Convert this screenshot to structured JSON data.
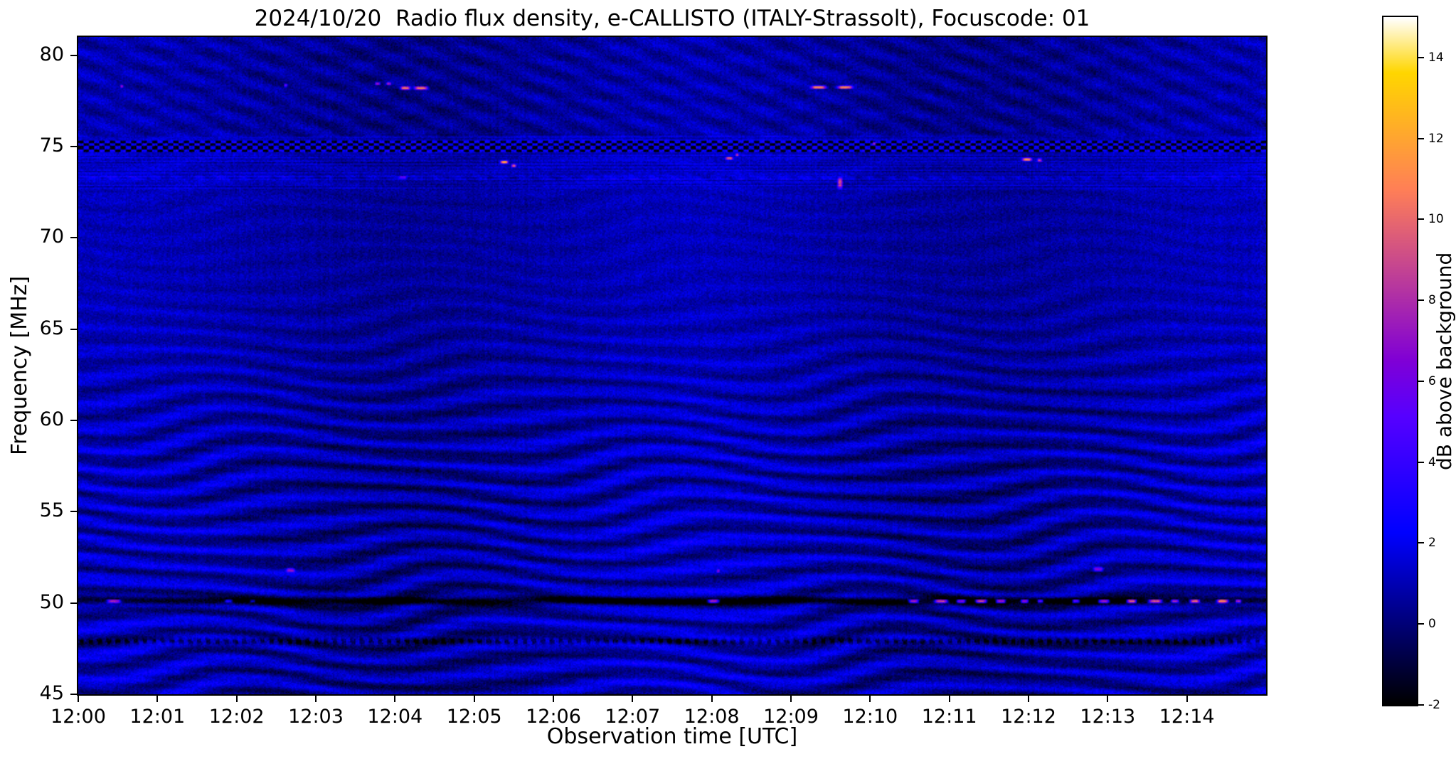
{
  "chart_data": {
    "type": "heatmap",
    "title": "2024/10/20  Radio flux density, e-CALLISTO (ITALY-Strassolt), Focuscode: 01",
    "xlabel": "Observation time [UTC]",
    "ylabel": "Frequency [MHz]",
    "x_range_minutes": [
      0,
      15
    ],
    "x_start": "12:00",
    "x_ticks": [
      {
        "label": "12:00",
        "minute": 0
      },
      {
        "label": "12:01",
        "minute": 1
      },
      {
        "label": "12:02",
        "minute": 2
      },
      {
        "label": "12:03",
        "minute": 3
      },
      {
        "label": "12:04",
        "minute": 4
      },
      {
        "label": "12:05",
        "minute": 5
      },
      {
        "label": "12:06",
        "minute": 6
      },
      {
        "label": "12:07",
        "minute": 7
      },
      {
        "label": "12:08",
        "minute": 8
      },
      {
        "label": "12:09",
        "minute": 9
      },
      {
        "label": "12:10",
        "minute": 10
      },
      {
        "label": "12:11",
        "minute": 11
      },
      {
        "label": "12:12",
        "minute": 12
      },
      {
        "label": "12:13",
        "minute": 13
      },
      {
        "label": "12:14",
        "minute": 14
      }
    ],
    "y_range_mhz": [
      45,
      81
    ],
    "y_ticks": [
      80,
      75,
      70,
      65,
      60,
      55,
      50,
      45
    ],
    "colorbar": {
      "label": "dB above background",
      "vmin": -2,
      "vmax": 15,
      "ticks": [
        14,
        12,
        10,
        8,
        6,
        4,
        2,
        0,
        -2
      ],
      "colormap": "gnuplot2"
    },
    "background_model": {
      "base_db": 0.8,
      "noise_db": 0.7,
      "ripple_db": 1.15,
      "ripple_period_mhz": 1.15,
      "ripple_fade_start_mhz": 58,
      "ripple_fade_end_mhz": 68,
      "diagonal_band_start_mhz": 75.5
    },
    "interference_lines": [
      {
        "f_mhz": 50.12,
        "type": "absorption",
        "depth_db": 3.4,
        "width_mhz": 0.3
      },
      {
        "f_mhz": 47.9,
        "type": "absorption-dashed",
        "depth_db": 2.4,
        "width_mhz": 0.25
      },
      {
        "f_mhz": 73.28,
        "type": "faint-emission",
        "peak_db": 1.0,
        "width_mhz": 0.2
      },
      {
        "f_mhz": 75.0,
        "type": "checkerboard",
        "width_mhz": 0.6,
        "bright_db": 2.4,
        "dark_db": -1.7
      }
    ],
    "bursts": [
      {
        "t_min": 0.45,
        "f_mhz": 50.1,
        "dur_min": 0.14,
        "bw_mhz": 0.16,
        "db": 9
      },
      {
        "t_min": 1.9,
        "f_mhz": 50.1,
        "dur_min": 0.08,
        "bw_mhz": 0.14,
        "db": 5
      },
      {
        "t_min": 2.2,
        "f_mhz": 50.1,
        "dur_min": 0.06,
        "bw_mhz": 0.14,
        "db": 4
      },
      {
        "t_min": 8.02,
        "f_mhz": 50.1,
        "dur_min": 0.12,
        "bw_mhz": 0.16,
        "db": 10
      },
      {
        "t_min": 10.55,
        "f_mhz": 50.1,
        "dur_min": 0.1,
        "bw_mhz": 0.16,
        "db": 9
      },
      {
        "t_min": 10.9,
        "f_mhz": 50.1,
        "dur_min": 0.14,
        "bw_mhz": 0.16,
        "db": 11
      },
      {
        "t_min": 11.15,
        "f_mhz": 50.1,
        "dur_min": 0.1,
        "bw_mhz": 0.16,
        "db": 10
      },
      {
        "t_min": 11.4,
        "f_mhz": 50.1,
        "dur_min": 0.12,
        "bw_mhz": 0.16,
        "db": 12
      },
      {
        "t_min": 11.65,
        "f_mhz": 50.1,
        "dur_min": 0.1,
        "bw_mhz": 0.16,
        "db": 10
      },
      {
        "t_min": 11.95,
        "f_mhz": 50.1,
        "dur_min": 0.08,
        "bw_mhz": 0.16,
        "db": 9
      },
      {
        "t_min": 12.15,
        "f_mhz": 50.1,
        "dur_min": 0.06,
        "bw_mhz": 0.14,
        "db": 8
      },
      {
        "t_min": 12.6,
        "f_mhz": 50.1,
        "dur_min": 0.08,
        "bw_mhz": 0.16,
        "db": 9
      },
      {
        "t_min": 12.95,
        "f_mhz": 50.1,
        "dur_min": 0.12,
        "bw_mhz": 0.16,
        "db": 11
      },
      {
        "t_min": 13.3,
        "f_mhz": 50.1,
        "dur_min": 0.1,
        "bw_mhz": 0.16,
        "db": 12
      },
      {
        "t_min": 13.6,
        "f_mhz": 50.1,
        "dur_min": 0.14,
        "bw_mhz": 0.16,
        "db": 11
      },
      {
        "t_min": 13.85,
        "f_mhz": 50.1,
        "dur_min": 0.08,
        "bw_mhz": 0.14,
        "db": 9
      },
      {
        "t_min": 14.1,
        "f_mhz": 50.1,
        "dur_min": 0.1,
        "bw_mhz": 0.16,
        "db": 11
      },
      {
        "t_min": 14.45,
        "f_mhz": 50.1,
        "dur_min": 0.12,
        "bw_mhz": 0.16,
        "db": 12
      },
      {
        "t_min": 14.65,
        "f_mhz": 50.1,
        "dur_min": 0.06,
        "bw_mhz": 0.14,
        "db": 9
      },
      {
        "t_min": 0.55,
        "f_mhz": 78.3,
        "dur_min": 0.03,
        "bw_mhz": 0.12,
        "db": 6
      },
      {
        "t_min": 2.62,
        "f_mhz": 78.35,
        "dur_min": 0.025,
        "bw_mhz": 0.12,
        "db": 6
      },
      {
        "t_min": 3.78,
        "f_mhz": 78.45,
        "dur_min": 0.05,
        "bw_mhz": 0.12,
        "db": 7
      },
      {
        "t_min": 3.92,
        "f_mhz": 78.45,
        "dur_min": 0.05,
        "bw_mhz": 0.12,
        "db": 7
      },
      {
        "t_min": 4.13,
        "f_mhz": 78.2,
        "dur_min": 0.1,
        "bw_mhz": 0.12,
        "db": 11
      },
      {
        "t_min": 4.33,
        "f_mhz": 78.2,
        "dur_min": 0.14,
        "bw_mhz": 0.12,
        "db": 11
      },
      {
        "t_min": 9.35,
        "f_mhz": 78.25,
        "dur_min": 0.16,
        "bw_mhz": 0.12,
        "db": 11
      },
      {
        "t_min": 9.68,
        "f_mhz": 78.25,
        "dur_min": 0.16,
        "bw_mhz": 0.12,
        "db": 11
      },
      {
        "t_min": 5.38,
        "f_mhz": 74.15,
        "dur_min": 0.08,
        "bw_mhz": 0.14,
        "db": 11
      },
      {
        "t_min": 5.5,
        "f_mhz": 73.95,
        "dur_min": 0.05,
        "bw_mhz": 0.12,
        "db": 8
      },
      {
        "t_min": 8.22,
        "f_mhz": 74.35,
        "dur_min": 0.08,
        "bw_mhz": 0.12,
        "db": 8
      },
      {
        "t_min": 8.32,
        "f_mhz": 74.55,
        "dur_min": 0.03,
        "bw_mhz": 0.1,
        "db": 6
      },
      {
        "t_min": 11.98,
        "f_mhz": 74.3,
        "dur_min": 0.1,
        "bw_mhz": 0.14,
        "db": 11
      },
      {
        "t_min": 12.14,
        "f_mhz": 74.25,
        "dur_min": 0.05,
        "bw_mhz": 0.1,
        "db": 8
      },
      {
        "t_min": 10.05,
        "f_mhz": 75.2,
        "dur_min": 0.03,
        "bw_mhz": 0.1,
        "db": 6
      },
      {
        "t_min": 4.1,
        "f_mhz": 73.3,
        "dur_min": 0.08,
        "bw_mhz": 0.1,
        "db": 4.5
      },
      {
        "t_min": 9.62,
        "f_mhz": 73.0,
        "dur_min": 0.05,
        "bw_mhz": 0.5,
        "db": 8
      },
      {
        "t_min": 2.68,
        "f_mhz": 51.8,
        "dur_min": 0.09,
        "bw_mhz": 0.18,
        "db": 6
      },
      {
        "t_min": 8.08,
        "f_mhz": 51.75,
        "dur_min": 0.03,
        "bw_mhz": 0.12,
        "db": 5
      },
      {
        "t_min": 12.88,
        "f_mhz": 51.85,
        "dur_min": 0.1,
        "bw_mhz": 0.2,
        "db": 6
      }
    ]
  }
}
